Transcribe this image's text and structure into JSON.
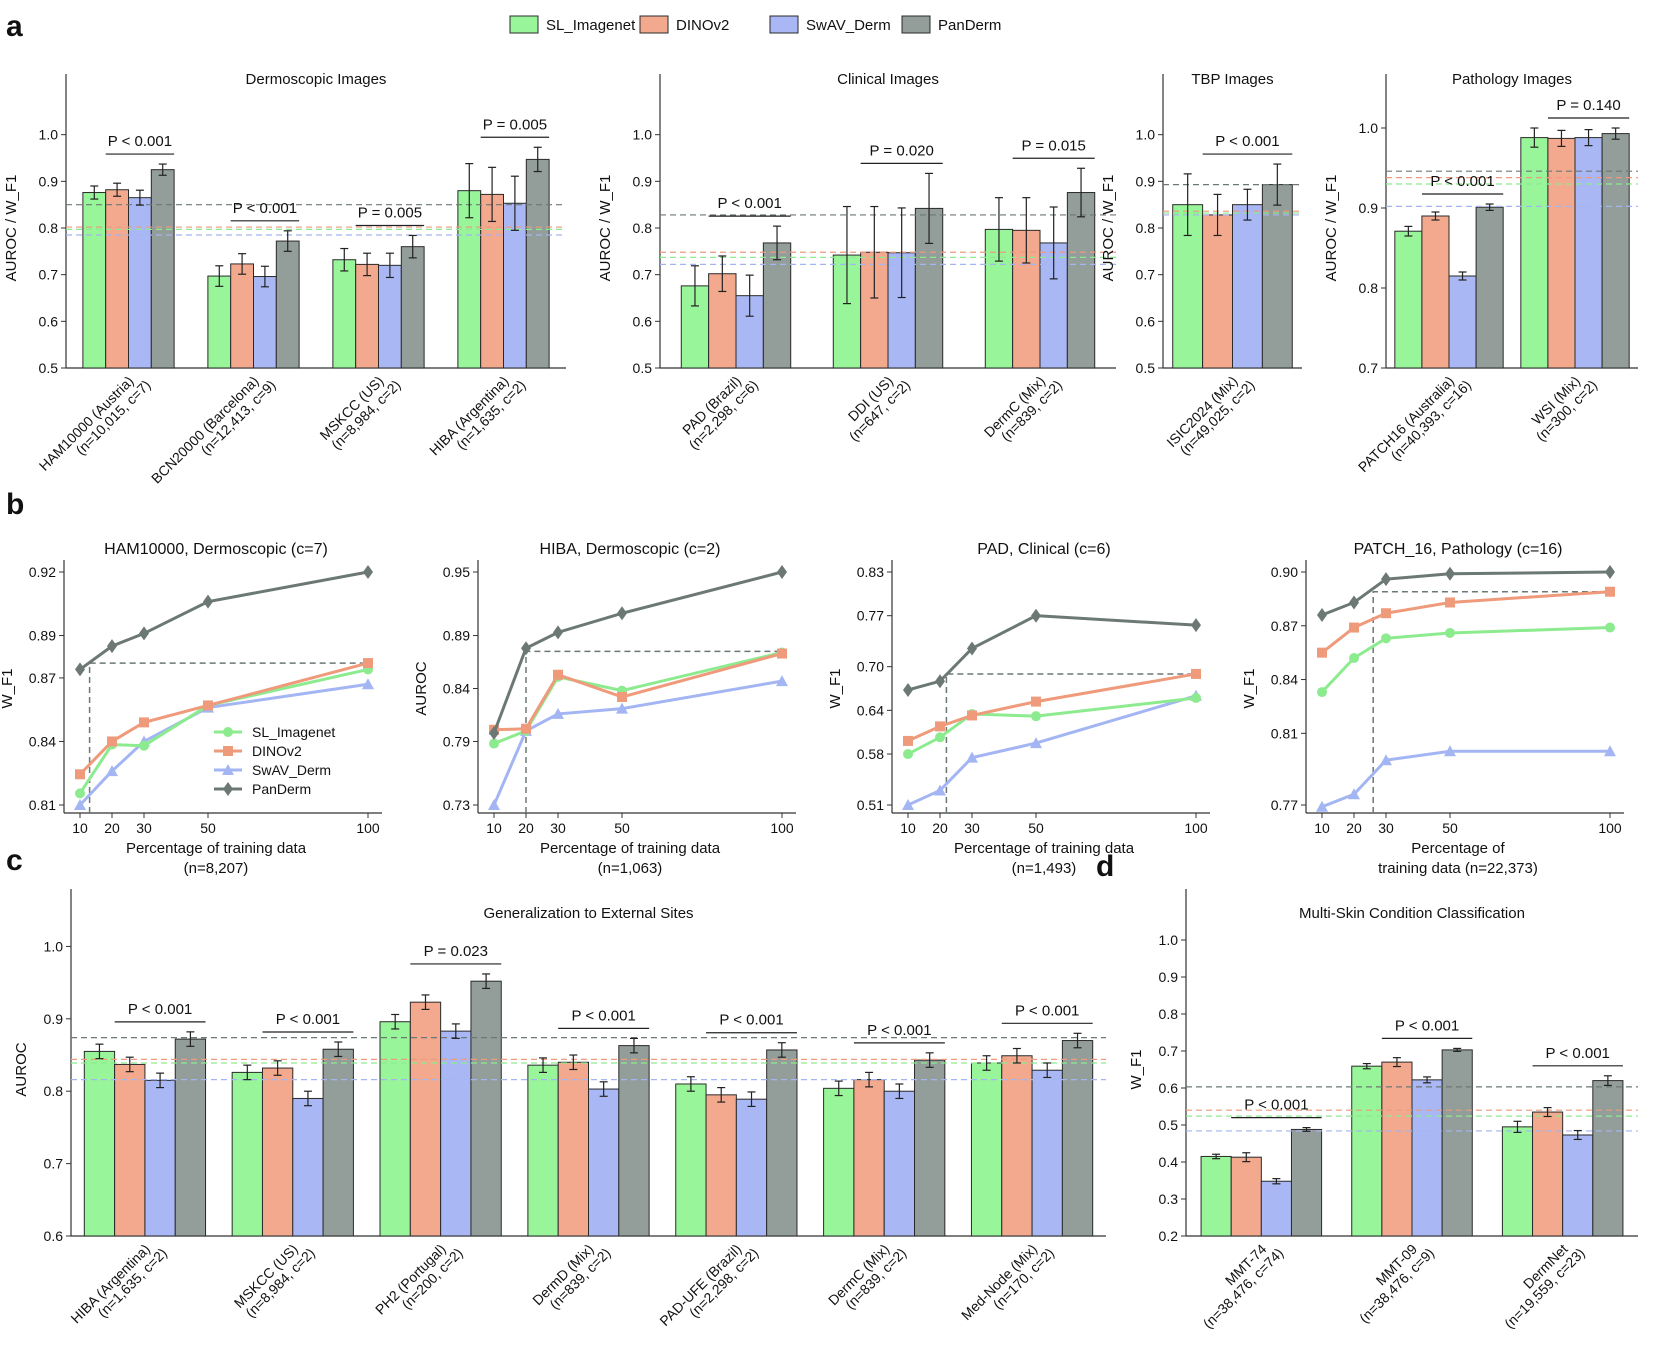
{
  "legend": {
    "entries": [
      "SL_Imagenet",
      "DINOv2",
      "SwAV_Derm",
      "PanDerm"
    ]
  },
  "panel_letters": [
    "a",
    "b",
    "c",
    "d"
  ],
  "colors": {
    "SL_Imagenet": "#98F59A",
    "DINOv2": "#F2A98E",
    "SwAV_Derm": "#A9B8F4",
    "PanDerm": "#939D99",
    "SL_Imagenet_line": "#8DEB8F",
    "DINOv2_line": "#EE9A7B",
    "SwAV_Derm_line": "#A3B5F2",
    "PanDerm_line": "#6C7874"
  },
  "chart_data": [
    {
      "id": "a1",
      "type": "bar",
      "title": "Dermoscopic Images",
      "ylabel": "AUROC / W_F1",
      "ylim": [
        0.5,
        1.1
      ],
      "yticks": [
        "0.5",
        "0.6",
        "0.7",
        "0.8",
        "0.9",
        "1.0"
      ],
      "categories": [
        "HAM10000 (Austria)",
        "BCN20000 (Barcelona)",
        "MSKCC (US)",
        "HIBA (Argentina)"
      ],
      "category_sub": [
        "(n=10,015, c=7)",
        "(n=12,413, c=9)",
        "(n=8,984, c=2)",
        "(n=1,635, c=2)"
      ],
      "series": [
        {
          "name": "SL_Imagenet",
          "values": [
            0.876,
            0.697,
            0.732,
            0.88
          ],
          "errors": [
            0.014,
            0.022,
            0.024,
            0.058
          ]
        },
        {
          "name": "DINOv2",
          "values": [
            0.882,
            0.723,
            0.722,
            0.872
          ],
          "errors": [
            0.014,
            0.022,
            0.024,
            0.058
          ]
        },
        {
          "name": "SwAV_Derm",
          "values": [
            0.865,
            0.696,
            0.72,
            0.853
          ],
          "errors": [
            0.016,
            0.022,
            0.026,
            0.058
          ]
        },
        {
          "name": "PanDerm",
          "values": [
            0.925,
            0.772,
            0.76,
            0.947
          ],
          "errors": [
            0.012,
            0.022,
            0.024,
            0.026
          ]
        }
      ],
      "ref_lines": [
        0.85,
        0.802,
        0.797,
        0.785
      ],
      "annotations": [
        {
          "group": 0,
          "text": "P < 0.001"
        },
        {
          "group": 1,
          "text": "P < 0.001"
        },
        {
          "group": 2,
          "text": "P = 0.005"
        },
        {
          "group": 3,
          "text": "P = 0.005"
        }
      ]
    },
    {
      "id": "a2",
      "type": "bar",
      "title": "Clinical Images",
      "ylabel": "AUROC / W_F1",
      "ylim": [
        0.5,
        1.1
      ],
      "yticks": [
        "0.5",
        "0.6",
        "0.7",
        "0.8",
        "0.9",
        "1.0"
      ],
      "categories": [
        "PAD (Brazil)",
        "DDI (US)",
        "DermC (Mix)"
      ],
      "category_sub": [
        "(n=2,298, c=6)",
        "(n=647, c=2)",
        "(n=839, c=2)"
      ],
      "series": [
        {
          "name": "SL_Imagenet",
          "values": [
            0.676,
            0.742,
            0.797
          ],
          "errors": [
            0.043,
            0.104,
            0.068
          ]
        },
        {
          "name": "DINOv2",
          "values": [
            0.702,
            0.748,
            0.795
          ],
          "errors": [
            0.038,
            0.098,
            0.07
          ]
        },
        {
          "name": "SwAV_Derm",
          "values": [
            0.655,
            0.747,
            0.768
          ],
          "errors": [
            0.044,
            0.096,
            0.077
          ]
        },
        {
          "name": "PanDerm",
          "values": [
            0.768,
            0.842,
            0.876
          ],
          "errors": [
            0.036,
            0.075,
            0.052
          ]
        }
      ],
      "ref_lines": [
        0.828,
        0.748,
        0.737,
        0.722
      ],
      "annotations": [
        {
          "group": 0,
          "text": "P < 0.001"
        },
        {
          "group": 1,
          "text": "P = 0.020"
        },
        {
          "group": 2,
          "text": "P = 0.015"
        }
      ]
    },
    {
      "id": "a3",
      "type": "bar",
      "title": "TBP Images",
      "ylabel": "AUROC / W_F1",
      "ylim": [
        0.5,
        1.1
      ],
      "yticks": [
        "0.5",
        "0.6",
        "0.7",
        "0.8",
        "0.9",
        "1.0"
      ],
      "categories": [
        "ISIC2024 (Mix)"
      ],
      "category_sub": [
        "(n=49,025, c=2)"
      ],
      "series": [
        {
          "name": "SL_Imagenet",
          "values": [
            0.85
          ],
          "errors": [
            0.066
          ]
        },
        {
          "name": "DINOv2",
          "values": [
            0.828
          ],
          "errors": [
            0.044
          ]
        },
        {
          "name": "SwAV_Derm",
          "values": [
            0.85
          ],
          "errors": [
            0.033
          ]
        },
        {
          "name": "PanDerm",
          "values": [
            0.893
          ],
          "errors": [
            0.044
          ]
        }
      ],
      "ref_lines": [
        0.893,
        0.836,
        0.832,
        0.828
      ],
      "annotations": [
        {
          "group": 0,
          "text": "P < 0.001"
        }
      ]
    },
    {
      "id": "a4",
      "type": "bar",
      "title": "Pathology Images",
      "ylabel": "AUROC / W_F1",
      "ylim": [
        0.7,
        1.05
      ],
      "yticks": [
        "0.7",
        "0.8",
        "0.9",
        "1.0"
      ],
      "categories": [
        "PATCH16 (Australia)",
        "WSI (Mix)"
      ],
      "category_sub": [
        "(n=40,393, c=16)",
        "(n=300, c=2)"
      ],
      "series": [
        {
          "name": "SL_Imagenet",
          "values": [
            0.871,
            0.988
          ],
          "errors": [
            0.006,
            0.012
          ]
        },
        {
          "name": "DINOv2",
          "values": [
            0.89,
            0.987
          ],
          "errors": [
            0.005,
            0.01
          ]
        },
        {
          "name": "SwAV_Derm",
          "values": [
            0.815,
            0.988
          ],
          "errors": [
            0.005,
            0.01
          ]
        },
        {
          "name": "PanDerm",
          "values": [
            0.901,
            0.993
          ],
          "errors": [
            0.004,
            0.007
          ]
        }
      ],
      "ref_lines": [
        0.946,
        0.938,
        0.93,
        0.902
      ],
      "annotations": [
        {
          "group": 0,
          "text": "P < 0.001"
        },
        {
          "group": 1,
          "text": "P = 0.140"
        }
      ]
    },
    {
      "id": "b1",
      "type": "line",
      "title": "HAM10000, Dermoscopic (c=7)",
      "ylabel": "W_F1",
      "xlabel": "Percentage of training data",
      "xlabel2": "(n=8,207)",
      "x": [
        10,
        20,
        30,
        50,
        100
      ],
      "ylim": [
        0.81,
        0.92
      ],
      "yticks": [
        "0.81",
        "0.84",
        "0.87",
        "0.89",
        "0.92"
      ],
      "ytick_values": [
        0.81,
        0.84,
        0.87,
        0.89,
        0.92
      ],
      "series": [
        {
          "name": "SL_Imagenet",
          "values": [
            0.8155,
            0.8385,
            0.838,
            0.857,
            0.874
          ]
        },
        {
          "name": "DINOv2",
          "values": [
            0.8245,
            0.84,
            0.849,
            0.857,
            0.877
          ]
        },
        {
          "name": "SwAV_Derm",
          "values": [
            0.81,
            0.826,
            0.84,
            0.856,
            0.867
          ]
        },
        {
          "name": "PanDerm",
          "values": [
            0.874,
            0.885,
            0.891,
            0.906,
            0.92
          ]
        }
      ],
      "guide": {
        "x": 13,
        "y": 0.877
      },
      "legend_panel": true
    },
    {
      "id": "b2",
      "type": "line",
      "title": "HIBA, Dermoscopic (c=2)",
      "ylabel": "AUROC",
      "xlabel": "Percentage of training data",
      "xlabel2": "(n=1,063)",
      "x": [
        10,
        20,
        30,
        50,
        100
      ],
      "ylim": [
        0.73,
        0.95
      ],
      "yticks": [
        "0.73",
        "0.79",
        "0.84",
        "0.89",
        "0.95"
      ],
      "ytick_values": [
        0.73,
        0.79,
        0.84,
        0.89,
        0.95
      ],
      "series": [
        {
          "name": "SL_Imagenet",
          "values": [
            0.788,
            0.8,
            0.851,
            0.838,
            0.874
          ]
        },
        {
          "name": "DINOv2",
          "values": [
            0.801,
            0.802,
            0.853,
            0.832,
            0.873
          ]
        },
        {
          "name": "SwAV_Derm",
          "values": [
            0.73,
            0.8,
            0.816,
            0.821,
            0.847
          ]
        },
        {
          "name": "PanDerm",
          "values": [
            0.798,
            0.878,
            0.893,
            0.911,
            0.95
          ]
        }
      ],
      "guide": {
        "x": 20,
        "y": 0.875
      }
    },
    {
      "id": "b3",
      "type": "line",
      "title": "PAD, Clinical (c=6)",
      "ylabel": "W_F1",
      "xlabel": "Percentage of training data",
      "xlabel2": "(n=1,493)",
      "x": [
        10,
        20,
        30,
        50,
        100
      ],
      "ylim": [
        0.51,
        0.83
      ],
      "yticks": [
        "0.51",
        "0.58",
        "0.64",
        "0.70",
        "0.77",
        "0.83"
      ],
      "ytick_values": [
        0.51,
        0.58,
        0.64,
        0.7,
        0.77,
        0.83
      ],
      "series": [
        {
          "name": "SL_Imagenet",
          "values": [
            0.58,
            0.603,
            0.635,
            0.632,
            0.657
          ]
        },
        {
          "name": "DINOv2",
          "values": [
            0.598,
            0.618,
            0.633,
            0.652,
            0.69
          ]
        },
        {
          "name": "SwAV_Derm",
          "values": [
            0.51,
            0.53,
            0.575,
            0.595,
            0.66
          ]
        },
        {
          "name": "PanDerm",
          "values": [
            0.668,
            0.68,
            0.725,
            0.77,
            0.757
          ]
        }
      ],
      "guide": {
        "x": 22,
        "y": 0.69
      }
    },
    {
      "id": "b4",
      "type": "line",
      "title": "PATCH_16, Pathology (c=16)",
      "ylabel": "W_F1",
      "xlabel": "Percentage of",
      "xlabel2": "training data (n=22,373)",
      "x": [
        10,
        20,
        30,
        50,
        100
      ],
      "ylim": [
        0.77,
        0.9
      ],
      "yticks": [
        "0.77",
        "0.81",
        "0.84",
        "0.87",
        "0.90"
      ],
      "ytick_values": [
        0.77,
        0.81,
        0.84,
        0.87,
        0.9
      ],
      "series": [
        {
          "name": "SL_Imagenet",
          "values": [
            0.833,
            0.852,
            0.863,
            0.866,
            0.869
          ]
        },
        {
          "name": "DINOv2",
          "values": [
            0.855,
            0.869,
            0.877,
            0.883,
            0.889
          ]
        },
        {
          "name": "SwAV_Derm",
          "values": [
            0.769,
            0.776,
            0.795,
            0.8,
            0.8
          ]
        },
        {
          "name": "PanDerm",
          "values": [
            0.876,
            0.883,
            0.896,
            0.899,
            0.9
          ]
        }
      ],
      "guide": {
        "x": 26,
        "y": 0.889
      }
    },
    {
      "id": "c",
      "type": "bar",
      "title": "Generalization to External Sites",
      "ylabel": "AUROC",
      "ylim": [
        0.6,
        1.06
      ],
      "yticks": [
        "0.6",
        "0.7",
        "0.8",
        "0.9",
        "1.0"
      ],
      "categories": [
        "HIBA (Argentina)",
        "MSKCC (US)",
        "PH2 (Portugal)",
        "DermD (Mix)",
        "PAD-UFE (Brazil)",
        "DermC (Mix)",
        "Med-Node (Mix)"
      ],
      "category_sub": [
        "(n=1,635, c=2)",
        "(n=8,984, c=2)",
        "(n=200, c=2)",
        "(n=839, c=2)",
        "(n=2,298, c=2)",
        "(n=839, c=2)",
        "(n=170, c=2)"
      ],
      "series": [
        {
          "name": "SL_Imagenet",
          "values": [
            0.855,
            0.826,
            0.896,
            0.836,
            0.81,
            0.804,
            0.839
          ],
          "errors": [
            0.01,
            0.01,
            0.01,
            0.01,
            0.01,
            0.01,
            0.01
          ]
        },
        {
          "name": "DINOv2",
          "values": [
            0.837,
            0.832,
            0.923,
            0.84,
            0.795,
            0.816,
            0.849
          ],
          "errors": [
            0.01,
            0.01,
            0.01,
            0.01,
            0.01,
            0.01,
            0.01
          ]
        },
        {
          "name": "SwAV_Derm",
          "values": [
            0.815,
            0.79,
            0.883,
            0.803,
            0.789,
            0.8,
            0.829
          ],
          "errors": [
            0.01,
            0.01,
            0.01,
            0.01,
            0.01,
            0.01,
            0.01
          ]
        },
        {
          "name": "PanDerm",
          "values": [
            0.872,
            0.858,
            0.952,
            0.863,
            0.857,
            0.843,
            0.87
          ],
          "errors": [
            0.01,
            0.01,
            0.01,
            0.01,
            0.01,
            0.01,
            0.01
          ]
        }
      ],
      "ref_lines": [
        0.874,
        0.844,
        0.839,
        0.816
      ],
      "annotations": [
        {
          "group": 0,
          "text": "P < 0.001"
        },
        {
          "group": 1,
          "text": "P < 0.001"
        },
        {
          "group": 2,
          "text": "P = 0.023"
        },
        {
          "group": 3,
          "text": "P < 0.001"
        },
        {
          "group": 4,
          "text": "P < 0.001"
        },
        {
          "group": 5,
          "text": "P < 0.001"
        },
        {
          "group": 6,
          "text": "P < 0.001"
        }
      ]
    },
    {
      "id": "d",
      "type": "bar",
      "title": "Multi-Skin Condition Classification",
      "ylabel": "W_F1",
      "ylim": [
        0.2,
        1.1
      ],
      "yticks": [
        "0.2",
        "0.3",
        "0.4",
        "0.5",
        "0.6",
        "0.7",
        "0.8",
        "0.9",
        "1.0"
      ],
      "categories": [
        "MMT-74",
        "MMT-09",
        "DermNet"
      ],
      "category_sub": [
        "(n=38,476, c=74)",
        "(n=38,476, c=9)",
        "(n=19,559, c=23)"
      ],
      "series": [
        {
          "name": "SL_Imagenet",
          "values": [
            0.415,
            0.659,
            0.495
          ],
          "errors": [
            0.006,
            0.007,
            0.015
          ]
        },
        {
          "name": "DINOv2",
          "values": [
            0.413,
            0.67,
            0.535
          ],
          "errors": [
            0.012,
            0.012,
            0.012
          ]
        },
        {
          "name": "SwAV_Derm",
          "values": [
            0.348,
            0.622,
            0.473
          ],
          "errors": [
            0.007,
            0.008,
            0.012
          ]
        },
        {
          "name": "PanDerm",
          "values": [
            0.488,
            0.703,
            0.62
          ],
          "errors": [
            0.005,
            0.004,
            0.013
          ]
        }
      ],
      "ref_lines": [
        0.603,
        0.54,
        0.524,
        0.484
      ],
      "annotations": [
        {
          "group": 0,
          "text": "P < 0.001"
        },
        {
          "group": 1,
          "text": "P < 0.001"
        },
        {
          "group": 2,
          "text": "P < 0.001"
        }
      ]
    }
  ]
}
